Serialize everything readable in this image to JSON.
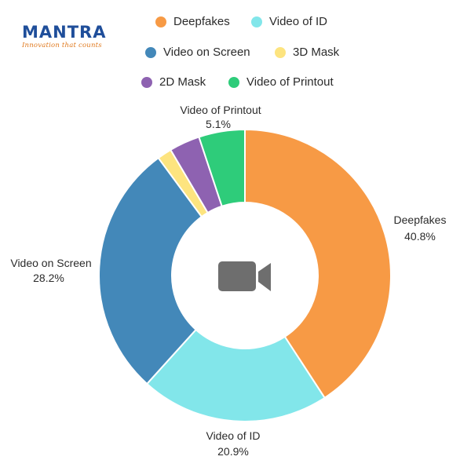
{
  "logo": {
    "name": "MANTRA",
    "tagline": "Innovation that counts"
  },
  "chart_data": {
    "type": "pie",
    "donut": true,
    "center_icon": "video-camera-icon",
    "legend_position": "top",
    "slices": [
      {
        "label": "Deepfakes",
        "value": 40.8,
        "display": "40.8%",
        "color": "#F79A45"
      },
      {
        "label": "Video of ID",
        "value": 20.9,
        "display": "20.9%",
        "color": "#82E6EA"
      },
      {
        "label": "Video on Screen",
        "value": 28.2,
        "display": "28.2%",
        "color": "#4388B9"
      },
      {
        "label": "3D Mask",
        "value": 1.6,
        "display": "",
        "color": "#FDE47F"
      },
      {
        "label": "2D Mask",
        "value": 3.4,
        "display": "",
        "color": "#8E62B1"
      },
      {
        "label": "Video of Printout",
        "value": 5.1,
        "display": "5.1%",
        "color": "#2ECC7A"
      }
    ]
  }
}
